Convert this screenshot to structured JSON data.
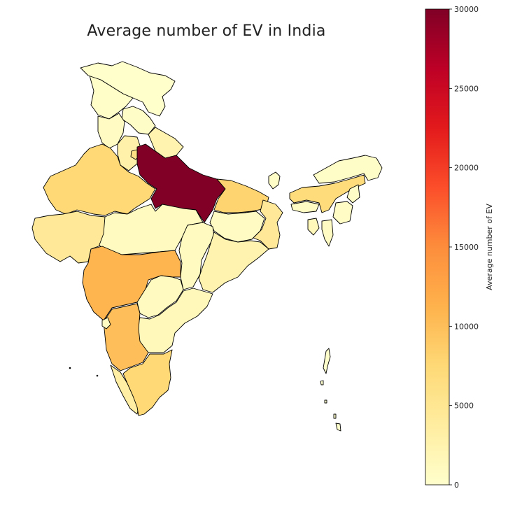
{
  "title": "Average number of EV in India",
  "colorbar": {
    "label": "Average number of EV",
    "min": 0,
    "max": 30000,
    "ticks": [
      0,
      5000,
      10000,
      15000,
      20000,
      25000,
      30000
    ],
    "tick_labels": [
      "0",
      "5000",
      "10000",
      "15000",
      "20000",
      "25000",
      "30000"
    ],
    "colormap": "YlOrRd",
    "stops": [
      "#ffffcc",
      "#ffeda0",
      "#fed976",
      "#feb24c",
      "#fd8d3c",
      "#fc4e2a",
      "#e31a1c",
      "#bd0026",
      "#800026"
    ]
  },
  "chart_data": {
    "type": "choropleth",
    "title": "Average number of EV in India",
    "colorbar_label": "Average number of EV",
    "range": [
      0,
      30000
    ],
    "regions": [
      {
        "id": "jammu-kashmir",
        "value": 300
      },
      {
        "id": "ladakh",
        "value": 100
      },
      {
        "id": "himachal-pradesh",
        "value": 400
      },
      {
        "id": "punjab",
        "value": 800
      },
      {
        "id": "uttarakhand",
        "value": 2500
      },
      {
        "id": "haryana",
        "value": 3000
      },
      {
        "id": "delhi",
        "value": 6000
      },
      {
        "id": "rajasthan",
        "value": 7500
      },
      {
        "id": "uttar-pradesh",
        "value": 30000
      },
      {
        "id": "gujarat",
        "value": 4500
      },
      {
        "id": "madhya-pradesh",
        "value": 1000
      },
      {
        "id": "bihar",
        "value": 8000
      },
      {
        "id": "jharkhand",
        "value": 800
      },
      {
        "id": "west-bengal",
        "value": 4500
      },
      {
        "id": "chhattisgarh",
        "value": 1000
      },
      {
        "id": "odisha",
        "value": 2500
      },
      {
        "id": "maharashtra",
        "value": 11000
      },
      {
        "id": "telangana",
        "value": 1000
      },
      {
        "id": "andhra-pradesh",
        "value": 1500
      },
      {
        "id": "karnataka",
        "value": 10000
      },
      {
        "id": "goa",
        "value": 800
      },
      {
        "id": "kerala",
        "value": 3500
      },
      {
        "id": "tamil-nadu",
        "value": 7500
      },
      {
        "id": "sikkim",
        "value": 400
      },
      {
        "id": "arunachal-pradesh",
        "value": 400
      },
      {
        "id": "assam",
        "value": 7000
      },
      {
        "id": "meghalaya",
        "value": 800
      },
      {
        "id": "nagaland",
        "value": 400
      },
      {
        "id": "manipur",
        "value": 600
      },
      {
        "id": "mizoram",
        "value": 800
      },
      {
        "id": "tripura",
        "value": 1500
      },
      {
        "id": "andaman-nicobar",
        "value": 50
      }
    ]
  }
}
